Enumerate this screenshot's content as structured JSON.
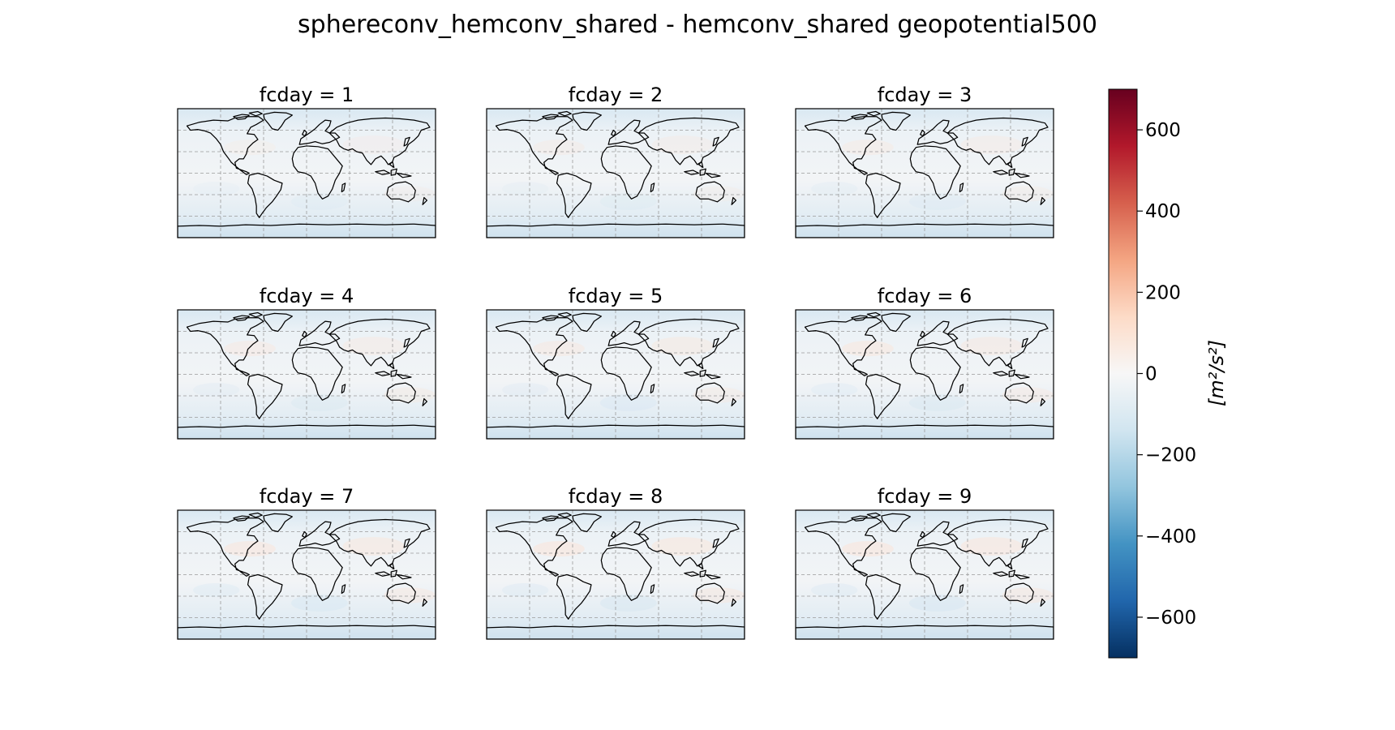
{
  "chart_data": {
    "type": "heatmap",
    "title": "sphereconv_hemconv_shared - hemconv_shared geopotential500",
    "panels": [
      {
        "title": "fcday = 1",
        "fcday": 1
      },
      {
        "title": "fcday = 2",
        "fcday": 2
      },
      {
        "title": "fcday = 3",
        "fcday": 3
      },
      {
        "title": "fcday = 4",
        "fcday": 4
      },
      {
        "title": "fcday = 5",
        "fcday": 5
      },
      {
        "title": "fcday = 6",
        "fcday": 6
      },
      {
        "title": "fcday = 7",
        "fcday": 7
      },
      {
        "title": "fcday = 8",
        "fcday": 8
      },
      {
        "title": "fcday = 9",
        "fcday": 9
      }
    ],
    "grid": true,
    "projection": "PlateCarree",
    "coastlines": true,
    "colorbar": {
      "colormap": "RdBu_r",
      "range": [
        -700,
        700
      ],
      "ticks": [
        -600,
        -400,
        -200,
        0,
        200,
        400,
        600
      ],
      "tick_labels": [
        "−600",
        "−400",
        "−200",
        "0",
        "200",
        "400",
        "600"
      ],
      "label": "[m²/s²]",
      "placement": "right"
    },
    "colors": {
      "negative_extreme": "#053061",
      "neutral": "#f7f7f7",
      "positive_extreme": "#67001f"
    }
  }
}
